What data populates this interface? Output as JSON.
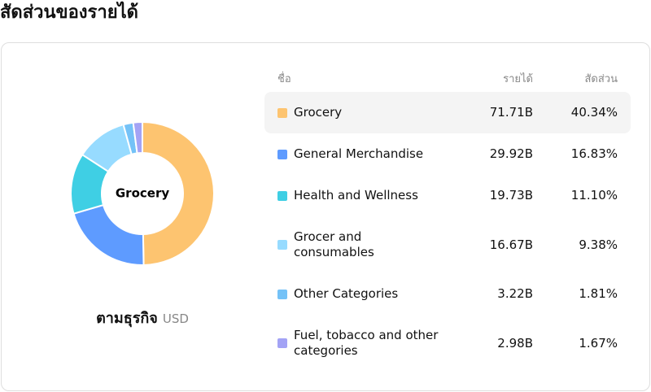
{
  "title": "สัดส่วนของรายได้",
  "chart_data": {
    "type": "pie",
    "donut": true,
    "center_label": "Grocery",
    "subtitle": "ตามธุรกิจ",
    "unit": "USD",
    "name_header": "ชื่อ",
    "categories": [
      "Grocery",
      "General Merchandise",
      "Health and Wellness",
      "Grocer and consumables",
      "Other Categories",
      "Fuel, tobacco and other categories"
    ],
    "colors": [
      "#fdc470",
      "#5e9bff",
      "#3fcfe4",
      "#97dbff",
      "#74c2f7",
      "#a3a3f5"
    ],
    "series": [
      {
        "name": "รายได้",
        "values": [
          71.71,
          29.92,
          19.73,
          16.67,
          3.22,
          2.98
        ],
        "value_labels": [
          "71.71B",
          "29.92B",
          "19.73B",
          "16.67B",
          "3.22B",
          "2.98B"
        ]
      },
      {
        "name": "สัดส่วน",
        "values": [
          40.34,
          16.83,
          11.1,
          9.38,
          1.81,
          1.67
        ],
        "value_labels": [
          "40.34%",
          "16.83%",
          "11.10%",
          "9.38%",
          "1.81%",
          "1.67%"
        ]
      }
    ]
  }
}
